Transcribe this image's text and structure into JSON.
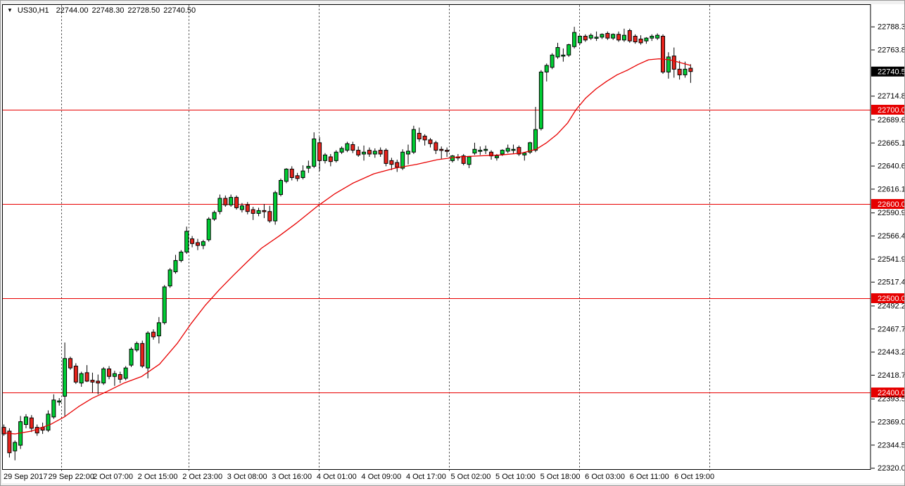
{
  "legend": {
    "symbol_text": "US30,H1",
    "open": "22744.00",
    "high": "22748.30",
    "low": "22728.50",
    "close": "22740.50"
  },
  "price_axis": {
    "ticks": [
      {
        "label": "22788.30",
        "type": "normal"
      },
      {
        "label": "22763.80",
        "type": "normal"
      },
      {
        "label": "22740.50",
        "type": "current"
      },
      {
        "label": "22714.80",
        "type": "normal"
      },
      {
        "label": "22700.00",
        "type": "level"
      },
      {
        "label": "22689.60",
        "type": "normal"
      },
      {
        "label": "22665.10",
        "type": "normal"
      },
      {
        "label": "22640.60",
        "type": "normal"
      },
      {
        "label": "22616.10",
        "type": "normal"
      },
      {
        "label": "22600.00",
        "type": "level"
      },
      {
        "label": "22590.90",
        "type": "normal"
      },
      {
        "label": "22566.40",
        "type": "normal"
      },
      {
        "label": "22541.90",
        "type": "normal"
      },
      {
        "label": "22517.40",
        "type": "normal"
      },
      {
        "label": "22500.00",
        "type": "level"
      },
      {
        "label": "22492.20",
        "type": "normal"
      },
      {
        "label": "22467.70",
        "type": "normal"
      },
      {
        "label": "22443.20",
        "type": "normal"
      },
      {
        "label": "22418.70",
        "type": "normal"
      },
      {
        "label": "22400.00",
        "type": "level"
      },
      {
        "label": "22393.50",
        "type": "normal"
      },
      {
        "label": "22369.00",
        "type": "normal"
      },
      {
        "label": "22344.50",
        "type": "normal"
      },
      {
        "label": "22320.00",
        "type": "normal"
      }
    ]
  },
  "time_axis": {
    "labels": [
      "29 Sep 2017",
      "29 Sep 22:00",
      "2 Oct 07:00",
      "2 Oct 15:00",
      "2 Oct 23:00",
      "3 Oct 08:00",
      "3 Oct 16:00",
      "4 Oct 01:00",
      "4 Oct 09:00",
      "4 Oct 17:00",
      "5 Oct 02:00",
      "5 Oct 10:00",
      "5 Oct 18:00",
      "6 Oct 03:00",
      "6 Oct 11:00",
      "6 Oct 19:00"
    ]
  },
  "colors": {
    "bull_candle": "#00cc33",
    "bear_candle": "#e8231c",
    "wick_outline": "#000000",
    "red_line": "#e80000",
    "level_badge_bg": "#e60000",
    "current_badge_bg": "#000000",
    "badge_text": "#ffffff",
    "axis_text": "#000000",
    "frame_gray": "#f0f0f0",
    "separator": "#2a2a2a"
  },
  "chart_data": {
    "type": "candlestick",
    "title": "US30,H1",
    "symbol": "US30",
    "timeframe": "H1",
    "last_bar": {
      "open": 22744.0,
      "high": 22748.3,
      "low": 22728.5,
      "close": 22740.5
    },
    "current_price": 22740.5,
    "horizontal_levels": [
      22700.0,
      22600.0,
      22500.0,
      22400.0
    ],
    "visible_price_range": [
      22320.0,
      22788.3
    ],
    "visible_time_range": [
      "29 Sep 2017",
      "6 Oct 19:00"
    ],
    "grid": "day-separators-dashed",
    "legend_position": "top-left",
    "columns": [
      "open",
      "high",
      "low",
      "close"
    ],
    "candles": [
      [
        22363,
        22366,
        22354,
        22356
      ],
      [
        22359,
        22362,
        22331,
        22336
      ],
      [
        22338,
        22349,
        22328,
        22347
      ],
      [
        22344,
        22375,
        22340,
        22369
      ],
      [
        22366,
        22377,
        22362,
        22374
      ],
      [
        22373,
        22376,
        22358,
        22362
      ],
      [
        22363,
        22366,
        22354,
        22357
      ],
      [
        22363,
        22368,
        22356,
        22360
      ],
      [
        22360,
        22381,
        22358,
        22377
      ],
      [
        22374,
        22398,
        22372,
        22392
      ],
      [
        22390,
        22394,
        22386,
        22391
      ],
      [
        22396,
        22453,
        22375,
        22436
      ],
      [
        22436,
        22438,
        22424,
        22426
      ],
      [
        22428,
        22431,
        22409,
        22411
      ],
      [
        22410,
        22422,
        22406,
        22420
      ],
      [
        22421,
        22429,
        22411,
        22412
      ],
      [
        22413,
        22421,
        22400,
        22411
      ],
      [
        22412,
        22419,
        22398,
        22410
      ],
      [
        22410,
        22427,
        22408,
        22425
      ],
      [
        22425,
        22428,
        22414,
        22417
      ],
      [
        22417,
        22423,
        22407,
        22420
      ],
      [
        22419,
        22422,
        22410,
        22414
      ],
      [
        22415,
        22428,
        22413,
        22426
      ],
      [
        22429,
        22448,
        22427,
        22446
      ],
      [
        22445,
        22454,
        22443,
        22452
      ],
      [
        22452,
        22455,
        22426,
        22428
      ],
      [
        22426,
        22465,
        22415,
        22463
      ],
      [
        22464,
        22467,
        22456,
        22459
      ],
      [
        22460,
        22480,
        22452,
        22474
      ],
      [
        22474,
        22514,
        22472,
        22512
      ],
      [
        22513,
        22532,
        22511,
        22530
      ],
      [
        22528,
        22546,
        22526,
        22540
      ],
      [
        22540,
        22551,
        22538,
        22549
      ],
      [
        22549,
        22576,
        22547,
        22571
      ],
      [
        22563,
        22566,
        22554,
        22558
      ],
      [
        22559,
        22563,
        22551,
        22556
      ],
      [
        22556,
        22562,
        22552,
        22560
      ],
      [
        22562,
        22586,
        22560,
        22584
      ],
      [
        22584,
        22593,
        22582,
        22591
      ],
      [
        22592,
        22610,
        22589,
        22606
      ],
      [
        22606,
        22609,
        22597,
        22599
      ],
      [
        22599,
        22610,
        22597,
        22607
      ],
      [
        22607,
        22609,
        22594,
        22596
      ],
      [
        22594,
        22601,
        22591,
        22598
      ],
      [
        22599,
        22602,
        22589,
        22592
      ],
      [
        22594,
        22597,
        22583,
        22590
      ],
      [
        22590,
        22596,
        22587,
        22593
      ],
      [
        22593,
        22600,
        22585,
        22592
      ],
      [
        22592,
        22598,
        22580,
        22582
      ],
      [
        22582,
        22614,
        22578,
        22612
      ],
      [
        22610,
        22627,
        22608,
        22625
      ],
      [
        22624,
        22638,
        22622,
        22637
      ],
      [
        22637,
        22640,
        22625,
        22628
      ],
      [
        22630,
        22633,
        22624,
        22627
      ],
      [
        22628,
        22641,
        22626,
        22635
      ],
      [
        22638,
        22646,
        22633,
        22640
      ],
      [
        22640,
        22676,
        22638,
        22669
      ],
      [
        22665,
        22671,
        22635,
        22646
      ],
      [
        22646,
        22654,
        22643,
        22652
      ],
      [
        22650,
        22653,
        22640,
        22645
      ],
      [
        22646,
        22657,
        22644,
        22655
      ],
      [
        22655,
        22661,
        22653,
        22659
      ],
      [
        22657,
        22666,
        22655,
        22664
      ],
      [
        22663,
        22666,
        22654,
        22657
      ],
      [
        22657,
        22661,
        22650,
        22652
      ],
      [
        22653,
        22662,
        22646,
        22655
      ],
      [
        22657,
        22660,
        22650,
        22653
      ],
      [
        22653,
        22659,
        22649,
        22656
      ],
      [
        22657,
        22660,
        22650,
        22653
      ],
      [
        22657,
        22659,
        22640,
        22643
      ],
      [
        22646,
        22649,
        22636,
        22642
      ],
      [
        22644,
        22647,
        22634,
        22639
      ],
      [
        22638,
        22658,
        22636,
        22655
      ],
      [
        22653,
        22663,
        22642,
        22656
      ],
      [
        22655,
        22683,
        22653,
        22679
      ],
      [
        22675,
        22681,
        22666,
        22669
      ],
      [
        22672,
        22674,
        22662,
        22668
      ],
      [
        22668,
        22670,
        22660,
        22664
      ],
      [
        22665,
        22667,
        22653,
        22657
      ],
      [
        22658,
        22661,
        22648,
        22657
      ],
      [
        22657,
        22660,
        22650,
        22656
      ],
      [
        22646,
        22652,
        22644,
        22651
      ],
      [
        22650,
        22653,
        22646,
        22649
      ],
      [
        22651,
        22653,
        22641,
        22643
      ],
      [
        22642,
        22651,
        22638,
        22650
      ],
      [
        22654,
        22665,
        22652,
        22658
      ],
      [
        22657,
        22661,
        22652,
        22657
      ],
      [
        22658,
        22662,
        22653,
        22658
      ],
      [
        22655,
        22657,
        22647,
        22651
      ],
      [
        22649,
        22653,
        22646,
        22651
      ],
      [
        22653,
        22658,
        22651,
        22657
      ],
      [
        22656,
        22663,
        22654,
        22659
      ],
      [
        22658,
        22663,
        22653,
        22658
      ],
      [
        22660,
        22662,
        22651,
        22653
      ],
      [
        22652,
        22655,
        22646,
        22654
      ],
      [
        22655,
        22666,
        22653,
        22665
      ],
      [
        22657,
        22703,
        22655,
        22679
      ],
      [
        22680,
        22742,
        22678,
        22740
      ],
      [
        22740,
        22749,
        22730,
        22747
      ],
      [
        22745,
        22760,
        22743,
        22758
      ],
      [
        22756,
        22771,
        22754,
        22766
      ],
      [
        22758,
        22765,
        22751,
        22758
      ],
      [
        22758,
        22770,
        22756,
        22769
      ],
      [
        22767,
        22788,
        22765,
        22782
      ],
      [
        22771,
        22779,
        22769,
        22778
      ],
      [
        22778,
        22780,
        22772,
        22774
      ],
      [
        22776,
        22781,
        22774,
        22779
      ],
      [
        22777,
        22783,
        22773,
        22777
      ],
      [
        22777,
        22781,
        22775,
        22780
      ],
      [
        22781,
        22783,
        22774,
        22776
      ],
      [
        22776,
        22781,
        22774,
        22780
      ],
      [
        22780,
        22783,
        22772,
        22774
      ],
      [
        22774,
        22786,
        22772,
        22779
      ],
      [
        22784,
        22786,
        22771,
        22773
      ],
      [
        22778,
        22780,
        22770,
        22772
      ],
      [
        22775,
        22779,
        22769,
        22771
      ],
      [
        22773,
        22777,
        22770,
        22776
      ],
      [
        22776,
        22780,
        22773,
        22778
      ],
      [
        22776,
        22781,
        22774,
        22779
      ],
      [
        22778,
        22780,
        22738,
        22740
      ],
      [
        22740,
        22761,
        22733,
        22756
      ],
      [
        22757,
        22766,
        22734,
        22743
      ],
      [
        22743,
        22752,
        22732,
        22737
      ],
      [
        22737,
        22751,
        22734,
        22743
      ],
      [
        22744,
        22748.3,
        22728.5,
        22740.5
      ]
    ],
    "ma": {
      "name": "moving-average",
      "color": "#e80000",
      "points": [
        [
          0,
          22357
        ],
        [
          2,
          22356
        ],
        [
          5,
          22359
        ],
        [
          8.4,
          22366
        ],
        [
          10.9,
          22374
        ],
        [
          13.5,
          22385
        ],
        [
          16,
          22394
        ],
        [
          18.6,
          22401
        ],
        [
          21.7,
          22410
        ],
        [
          24.9,
          22417
        ],
        [
          28.1,
          22430
        ],
        [
          31.3,
          22452
        ],
        [
          33.8,
          22473
        ],
        [
          36.3,
          22492
        ],
        [
          38.9,
          22509
        ],
        [
          41.4,
          22524
        ],
        [
          44,
          22539
        ],
        [
          46.5,
          22553
        ],
        [
          49.7,
          22566
        ],
        [
          52.9,
          22580
        ],
        [
          56.7,
          22598
        ],
        [
          59.8,
          22611
        ],
        [
          63,
          22622
        ],
        [
          66.8,
          22632
        ],
        [
          70.6,
          22638
        ],
        [
          74.5,
          22642
        ],
        [
          78.3,
          22647
        ],
        [
          82.1,
          22650
        ],
        [
          85.9,
          22651
        ],
        [
          89.7,
          22652
        ],
        [
          93.5,
          22654
        ],
        [
          96.1,
          22658
        ],
        [
          98,
          22665
        ],
        [
          99.9,
          22674
        ],
        [
          101.8,
          22686
        ],
        [
          103.3,
          22700
        ],
        [
          105,
          22712
        ],
        [
          106.9,
          22722
        ],
        [
          108.8,
          22730
        ],
        [
          110.7,
          22737
        ],
        [
          112.6,
          22742
        ],
        [
          114.5,
          22748
        ],
        [
          116.4,
          22753
        ],
        [
          118.3,
          22754
        ],
        [
          120.2,
          22753
        ],
        [
          122.1,
          22750
        ],
        [
          124,
          22747
        ]
      ]
    }
  }
}
